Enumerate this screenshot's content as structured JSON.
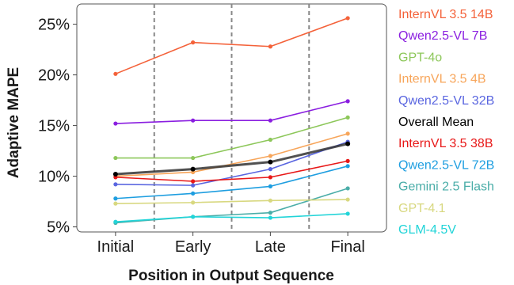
{
  "chart_data": {
    "type": "line",
    "categories": [
      "Initial",
      "Early",
      "Late",
      "Final"
    ],
    "xlabel": "Position in Output Sequence",
    "ylabel": "Adaptive MAPE",
    "ylim": [
      4.5,
      27
    ],
    "yticks": [
      5,
      10,
      15,
      20,
      25
    ],
    "ytick_labels": [
      "5%",
      "10%",
      "15%",
      "20%",
      "25%"
    ],
    "grid": "vertical dashed separators between categories",
    "legend_position": "right",
    "series": [
      {
        "name": "InternVL 3.5 14B",
        "color": "#f4623a",
        "values": [
          20.1,
          23.2,
          22.8,
          25.6
        ]
      },
      {
        "name": "Qwen2.5-VL 7B",
        "color": "#8a1ee0",
        "values": [
          15.2,
          15.5,
          15.5,
          17.4
        ]
      },
      {
        "name": "GPT-4o",
        "color": "#8dc75a",
        "values": [
          11.8,
          11.8,
          13.6,
          15.8
        ]
      },
      {
        "name": "InternVL 3.5 4B",
        "color": "#f7a55a",
        "values": [
          10.0,
          10.4,
          12.0,
          14.2
        ]
      },
      {
        "name": "Qwen2.5-VL 32B",
        "color": "#5a66e0",
        "values": [
          9.2,
          9.1,
          10.7,
          13.4
        ]
      },
      {
        "name": "Overall Mean",
        "color": "#000000",
        "values": [
          10.2,
          10.7,
          11.4,
          13.2
        ]
      },
      {
        "name": "InternVL 3.5 38B",
        "color": "#e81818",
        "values": [
          9.9,
          9.5,
          9.9,
          11.5
        ]
      },
      {
        "name": "Qwen2.5-VL 72B",
        "color": "#1e9ee0",
        "values": [
          7.8,
          8.3,
          9.0,
          11.0
        ]
      },
      {
        "name": "Gemini 2.5 Flash",
        "color": "#4aada8",
        "values": [
          5.4,
          6.0,
          6.4,
          8.8
        ]
      },
      {
        "name": "GPT-4.1",
        "color": "#d8d880",
        "values": [
          7.3,
          7.4,
          7.6,
          7.7
        ]
      },
      {
        "name": "GLM-4.5V",
        "color": "#22d4d8",
        "values": [
          5.5,
          6.0,
          5.9,
          6.3
        ]
      }
    ]
  }
}
